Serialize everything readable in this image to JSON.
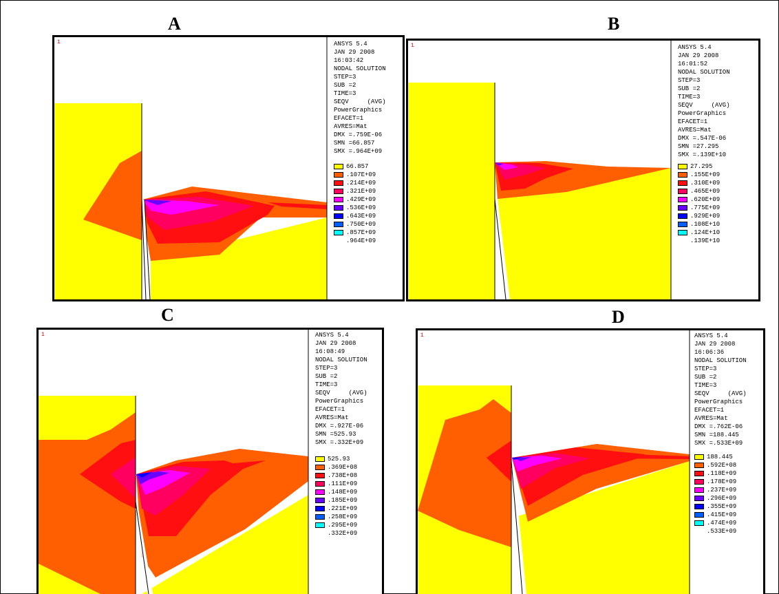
{
  "colors": {
    "band0": "#ffff00",
    "band1": "#ff5f00",
    "band2": "#ff0f0f",
    "band3": "#ff0060",
    "band4": "#ff00ff",
    "band5": "#6a00ff",
    "band6": "#0000ff",
    "band7": "#0060ff",
    "band8": "#00ffff",
    "border": "#000000",
    "window_number": "#e00000"
  },
  "panels": [
    {
      "letter": "A",
      "window_number": "1",
      "info": [
        "ANSYS 5.4",
        "JAN 29 2008",
        "16:03:42",
        "NODAL SOLUTION",
        "STEP=3",
        "SUB =2",
        "TIME=3",
        "SEQV     (AVG)",
        "PowerGraphics",
        "EFACET=1",
        "AVRES=Mat",
        "DMX =.759E-06",
        "SMN =66.857",
        "SMX =.964E+09"
      ],
      "legend": [
        "66.857",
        ".107E+09",
        ".214E+09",
        ".321E+09",
        ".429E+09",
        ".536E+09",
        ".643E+09",
        ".750E+09",
        ".857E+09",
        ".964E+09"
      ]
    },
    {
      "letter": "B",
      "window_number": "1",
      "info": [
        "ANSYS 5.4",
        "JAN 29 2008",
        "16:01:52",
        "NODAL SOLUTION",
        "STEP=3",
        "SUB =2",
        "TIME=3",
        "SEQV     (AVG)",
        "PowerGraphics",
        "EFACET=1",
        "AVRES=Mat",
        "DMX =.547E-06",
        "SMN =27.295",
        "SMX =.139E+10"
      ],
      "legend": [
        "27.295",
        ".155E+09",
        ".310E+09",
        ".465E+09",
        ".620E+09",
        ".775E+09",
        ".929E+09",
        ".108E+10",
        ".124E+10",
        ".139E+10"
      ]
    },
    {
      "letter": "C",
      "window_number": "1",
      "info": [
        "ANSYS 5.4",
        "JAN 29 2008",
        "16:08:49",
        "NODAL SOLUTION",
        "STEP=3",
        "SUB =2",
        "TIME=3",
        "SEQV     (AVG)",
        "PowerGraphics",
        "EFACET=1",
        "AVRES=Mat",
        "DMX =.927E-06",
        "SMN =525.93",
        "SMX =.332E+09"
      ],
      "legend": [
        "525.93",
        ".369E+08",
        ".738E+08",
        ".111E+09",
        ".148E+09",
        ".185E+09",
        ".221E+09",
        ".258E+09",
        ".295E+09",
        ".332E+09"
      ]
    },
    {
      "letter": "D",
      "window_number": "1",
      "info": [
        "ANSYS 5.4",
        "JAN 29 2008",
        "16:06:36",
        "NODAL SOLUTION",
        "STEP=3",
        "SUB =2",
        "TIME=3",
        "SEQV     (AVG)",
        "PowerGraphics",
        "EFACET=1",
        "AVRES=Mat",
        "DMX =.762E-06",
        "SMN =188.445",
        "SMX =.533E+09"
      ],
      "legend": [
        "188.445",
        ".592E+08",
        ".118E+09",
        ".178E+09",
        ".237E+09",
        ".296E+09",
        ".355E+09",
        ".415E+09",
        ".474E+09",
        ".533E+09"
      ]
    }
  ]
}
